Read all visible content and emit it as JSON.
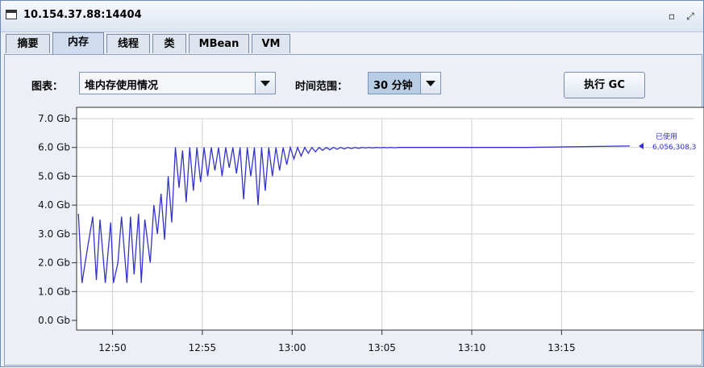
{
  "window": {
    "title": "10.154.37.88:14404"
  },
  "tabs": [
    {
      "label": "摘要",
      "active": false
    },
    {
      "label": "内存",
      "active": true
    },
    {
      "label": "线程",
      "active": false
    },
    {
      "label": "类",
      "active": false
    },
    {
      "label": "MBean",
      "active": false
    },
    {
      "label": "VM",
      "active": false
    }
  ],
  "controls": {
    "chart_label": "图表：",
    "chart_select": "堆内存使用情况",
    "range_label": "时间范围：",
    "range_select": "30 分钟",
    "gc_button": "执行 GC"
  },
  "legend": {
    "label": "已使用",
    "value": "6,056,308,3"
  },
  "colors": {
    "series": "#3333cc",
    "grid": "#d0d0d0"
  },
  "chart_data": {
    "type": "line",
    "ylabel": "",
    "xlabel": "",
    "y_tick_labels": [
      "0.0 Gb",
      "1.0 Gb",
      "2.0 Gb",
      "3.0 Gb",
      "4.0 Gb",
      "5.0 Gb",
      "6.0 Gb",
      "7.0 Gb"
    ],
    "y_ticks": [
      0,
      1,
      2,
      3,
      4,
      5,
      6,
      7
    ],
    "ylim": [
      0,
      7
    ],
    "x_tick_labels": [
      "12:50",
      "12:55",
      "13:00",
      "13:05",
      "13:10",
      "13:15"
    ],
    "x_ticks": [
      2.0,
      7.0,
      12.0,
      17.0,
      22.0,
      27.0
    ],
    "xlim": [
      0,
      30.8
    ],
    "x_units": "minutes since 12:48",
    "series": [
      {
        "name": "已使用",
        "x": [
          0.1,
          0.3,
          0.55,
          0.9,
          1.1,
          1.3,
          1.6,
          1.9,
          2.05,
          2.3,
          2.5,
          2.8,
          3.0,
          3.2,
          3.45,
          3.6,
          3.8,
          4.1,
          4.3,
          4.5,
          4.7,
          4.9,
          5.1,
          5.3,
          5.5,
          5.7,
          5.9,
          6.1,
          6.3,
          6.5,
          6.7,
          6.9,
          7.1,
          7.3,
          7.5,
          7.7,
          7.9,
          8.1,
          8.3,
          8.5,
          8.7,
          8.9,
          9.1,
          9.3,
          9.5,
          9.7,
          9.9,
          10.1,
          10.3,
          10.5,
          10.7,
          10.9,
          11.1,
          11.3,
          11.5,
          11.7,
          11.9,
          12.1,
          12.3,
          12.5,
          12.7,
          12.9,
          13.1,
          13.3,
          13.5,
          13.7,
          13.9,
          14.1,
          14.3,
          14.5,
          14.7,
          14.9,
          15.1,
          15.3,
          15.5,
          15.7,
          15.9,
          16.1,
          16.3,
          16.5,
          16.7,
          16.9,
          17.1,
          17.3,
          17.5,
          17.7,
          17.9,
          18.1,
          18.3,
          18.5,
          18.7,
          18.9,
          19.5,
          20,
          20.5,
          21,
          21.5,
          22,
          22.5,
          23,
          25,
          30.8
        ],
        "values": [
          3.7,
          1.3,
          2.3,
          3.6,
          1.4,
          3.5,
          1.3,
          3.4,
          1.3,
          2.0,
          3.6,
          1.3,
          3.6,
          1.6,
          3.7,
          1.3,
          3.5,
          2.0,
          4.0,
          3.0,
          4.4,
          2.8,
          5.0,
          3.4,
          6.0,
          4.6,
          5.9,
          4.1,
          6.0,
          4.5,
          6.0,
          4.8,
          6.0,
          5.0,
          6.0,
          5.2,
          6.0,
          5.0,
          6.0,
          5.3,
          6.0,
          5.1,
          6.0,
          4.2,
          6.0,
          5.0,
          6.0,
          4.0,
          6.0,
          4.5,
          6.0,
          5.0,
          6.0,
          5.2,
          6.0,
          5.4,
          6.0,
          5.6,
          6.0,
          5.7,
          6.0,
          5.8,
          6.0,
          5.85,
          6.0,
          5.9,
          6.0,
          5.92,
          6.0,
          5.94,
          6.0,
          5.95,
          6.0,
          5.96,
          6.0,
          5.97,
          6.0,
          5.98,
          6.0,
          5.98,
          6.0,
          5.99,
          6.0,
          5.99,
          6.0,
          5.99,
          6.0,
          6.0,
          6.0,
          6.0,
          6.0,
          6.0,
          6.0,
          6.0,
          6.0,
          6.0,
          6.0,
          6.0,
          6.0,
          6.0,
          6.0,
          6.05
        ]
      }
    ]
  }
}
